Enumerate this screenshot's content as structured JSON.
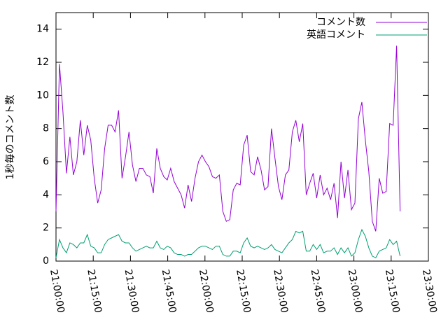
{
  "chart_data": {
    "type": "line",
    "y_label": "1秒毎のコメント数",
    "x": [
      "21:00:00",
      "21:01:24",
      "21:02:48",
      "21:04:12",
      "21:05:36",
      "21:07:00",
      "21:08:24",
      "21:09:48",
      "21:11:12",
      "21:12:36",
      "21:14:00",
      "21:15:24",
      "21:16:48",
      "21:18:12",
      "21:19:36",
      "21:21:00",
      "21:22:24",
      "21:23:48",
      "21:25:12",
      "21:26:36",
      "21:28:00",
      "21:29:24",
      "21:30:48",
      "21:32:12",
      "21:33:36",
      "21:35:00",
      "21:36:24",
      "21:37:48",
      "21:39:12",
      "21:40:36",
      "21:42:00",
      "21:43:24",
      "21:44:48",
      "21:46:12",
      "21:47:36",
      "21:49:00",
      "21:50:24",
      "21:51:48",
      "21:53:12",
      "21:54:36",
      "21:56:00",
      "21:57:24",
      "21:58:48",
      "22:00:12",
      "22:01:36",
      "22:03:00",
      "22:04:24",
      "22:05:48",
      "22:07:12",
      "22:08:36",
      "22:10:00",
      "22:11:24",
      "22:12:48",
      "22:14:12",
      "22:15:36",
      "22:17:00",
      "22:18:24",
      "22:19:48",
      "22:21:12",
      "22:22:36",
      "22:24:00",
      "22:25:24",
      "22:26:48",
      "22:28:12",
      "22:29:36",
      "22:31:00",
      "22:32:24",
      "22:33:48",
      "22:35:12",
      "22:36:36",
      "22:38:00",
      "22:39:24",
      "22:40:48",
      "22:42:12",
      "22:43:36",
      "22:45:00",
      "22:46:24",
      "22:47:48",
      "22:49:12",
      "22:50:36",
      "22:52:00",
      "22:53:24",
      "22:54:48",
      "22:56:12",
      "22:57:36",
      "22:59:00",
      "23:00:24",
      "23:01:48",
      "23:03:12",
      "23:04:36",
      "23:06:00",
      "23:07:24",
      "23:08:48",
      "23:10:12",
      "23:11:36",
      "23:13:00",
      "23:14:24",
      "23:15:48",
      "23:17:12",
      "23:18:36"
    ],
    "series": [
      {
        "name": "コメント数",
        "color": "#9400d3",
        "values": [
          3.0,
          11.9,
          9.0,
          5.3,
          7.5,
          5.2,
          6.0,
          8.5,
          6.4,
          8.2,
          7.3,
          5.0,
          3.5,
          4.3,
          6.8,
          8.2,
          8.2,
          7.8,
          9.1,
          5.0,
          6.3,
          7.8,
          5.8,
          4.8,
          5.6,
          5.6,
          5.2,
          5.1,
          4.1,
          6.8,
          5.6,
          5.1,
          4.9,
          5.6,
          4.8,
          4.4,
          4.0,
          3.2,
          4.6,
          3.6,
          5.0,
          6.0,
          6.4,
          6.0,
          5.7,
          5.1,
          5.0,
          5.2,
          3.0,
          2.4,
          2.5,
          4.3,
          4.7,
          4.6,
          7.0,
          7.6,
          5.4,
          5.2,
          6.3,
          5.5,
          4.3,
          4.5,
          8.0,
          6.2,
          4.5,
          3.7,
          5.2,
          5.5,
          7.8,
          8.5,
          7.2,
          8.3,
          4.0,
          4.7,
          5.3,
          3.8,
          5.2,
          4.0,
          4.4,
          3.7,
          4.7,
          2.6,
          6.0,
          3.8,
          5.5,
          3.1,
          3.5,
          8.6,
          9.6,
          7.3,
          5.4,
          2.4,
          1.8,
          5.0,
          4.1,
          4.2,
          8.3,
          8.2,
          13.0,
          3.0
        ]
      },
      {
        "name": "英語コメント",
        "color": "#009e73",
        "values": [
          0.2,
          1.3,
          0.8,
          0.5,
          1.1,
          1.0,
          0.8,
          1.1,
          1.1,
          1.6,
          0.9,
          0.8,
          0.5,
          0.5,
          1.0,
          1.3,
          1.4,
          1.5,
          1.6,
          1.2,
          1.1,
          1.1,
          0.8,
          0.6,
          0.7,
          0.8,
          0.9,
          0.8,
          0.8,
          1.2,
          0.8,
          0.7,
          0.9,
          0.8,
          0.5,
          0.4,
          0.4,
          0.3,
          0.4,
          0.4,
          0.6,
          0.8,
          0.9,
          0.9,
          0.8,
          0.7,
          0.9,
          0.9,
          0.4,
          0.3,
          0.3,
          0.6,
          0.6,
          0.5,
          1.1,
          1.4,
          0.9,
          0.8,
          0.9,
          0.8,
          0.7,
          0.8,
          1.0,
          0.7,
          0.6,
          0.5,
          0.8,
          1.1,
          1.3,
          1.8,
          1.7,
          1.8,
          0.6,
          0.6,
          1.0,
          0.7,
          1.0,
          0.5,
          0.6,
          0.6,
          0.8,
          0.4,
          0.8,
          0.5,
          0.8,
          0.3,
          0.5,
          1.3,
          1.9,
          1.5,
          0.8,
          0.3,
          0.2,
          0.6,
          0.7,
          0.8,
          1.3,
          1.0,
          1.2,
          0.3
        ]
      }
    ],
    "xlim": [
      "21:00:00",
      "23:30:00"
    ],
    "xticks": [
      "21:00:00",
      "21:15:00",
      "21:30:00",
      "21:45:00",
      "22:00:00",
      "22:15:00",
      "22:30:00",
      "22:45:00",
      "23:00:00",
      "23:15:00",
      "23:30:00"
    ],
    "ylim": [
      0,
      15
    ],
    "yticks": [
      0,
      2,
      4,
      6,
      8,
      10,
      12,
      14
    ],
    "legend": "top-right"
  }
}
